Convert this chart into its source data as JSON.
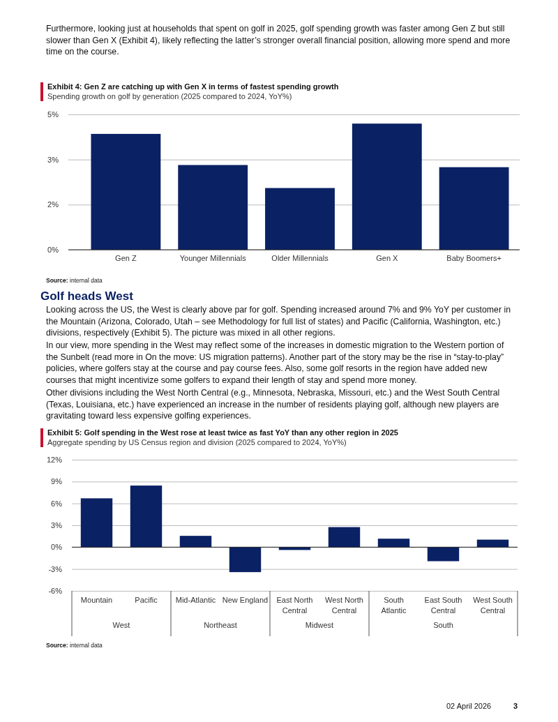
{
  "chart_data": [
    {
      "type": "bar",
      "title": "Exhibit 4: Gen Z are catching up with Gen X in terms of fastest spending growth",
      "subtitle": "Spending growth on golf by generation (2025 compared to 2024, YoY%)",
      "categories": [
        "Gen Z",
        "Younger Millennials",
        "Older Millennials",
        "Gen X",
        "Baby Boomers+"
      ],
      "values": [
        4.28,
        3.13,
        2.28,
        4.66,
        3.05
      ],
      "color": "#0a2164",
      "ylim": [
        0,
        5
      ],
      "yticks": [
        {
          "value": 0,
          "label": "0%"
        },
        {
          "value": 1.667,
          "label": "2%"
        },
        {
          "value": 3.333,
          "label": "3%"
        },
        {
          "value": 5,
          "label": "5%"
        }
      ],
      "grid": "y",
      "annotations": [
        "Furthermore, looking just at households that spent on golf in 2025, golf spending growth was faster among Gen Z but still slower than Gen X (Exhibit 4), likely reflecting the latter’s stronger overall financial position, allowing more spend and more time on the course.",
        "Source: internal data"
      ]
    },
    {
      "type": "bar",
      "title": "Exhibit 5: Golf spending in the West rose at least twice as fast YoY than any other region in 2025",
      "subtitle": "Aggregate spending by US Census region and division (2025 compared to 2024, YoY%)",
      "categories": [
        "Mountain",
        "Pacific",
        "Mid-Atlantic",
        "New England",
        "East North Central",
        "West North Central",
        "South Atlantic",
        "East South Central",
        "West South Central"
      ],
      "values": [
        6.7,
        8.45,
        1.55,
        -3.43,
        -0.39,
        2.75,
        1.16,
        -1.93,
        1.03
      ],
      "color": "#0a2164",
      "ylim": [
        -6,
        12
      ],
      "yticks": [
        {
          "value": -6,
          "label": "-6%"
        },
        {
          "value": -3,
          "label": "-3%"
        },
        {
          "value": 0,
          "label": "0%"
        },
        {
          "value": 3,
          "label": "3%"
        },
        {
          "value": 6,
          "label": "6%"
        },
        {
          "value": 9,
          "label": "9%"
        },
        {
          "value": 12,
          "label": "12%"
        }
      ],
      "grid": "y",
      "annotations": [
        "Golf heads West",
        "Looking across the US, the West is clearly above par for golf. Spending increased around 7% and 9% YoY per customer in the Mountain (Arizona, Colorado, Utah – see Methodology for full list of states) and Pacific (California, Washington, etc.) divisions, respectively (Exhibit 5). The picture was mixed in all other regions.",
        "In our view, more spending in the West may reflect some of the increases in domestic migration to the Western portion of the Sunbelt (read more in On the move: US migration patterns). Another part of the story may be the rise in “stay-to-play” policies, where golfers stay at the course and pay course fees. Also, some golf resorts in the region have added new courses that might incentivize some golfers to expand their length of stay and spend more money.",
        "Other divisions including the West North Central (e.g., Minnesota, Nebraska, Missouri, etc.) and the West South Central (Texas, Louisiana, etc.) have experienced an increase in the number of residents playing golf, although new players are gravitating toward less expensive golfing experiences.",
        "Source: internal data",
        "West",
        "Northeast",
        "Midwest",
        "South",
        "02 April 2026",
        "3"
      ]
    }
  ]
}
